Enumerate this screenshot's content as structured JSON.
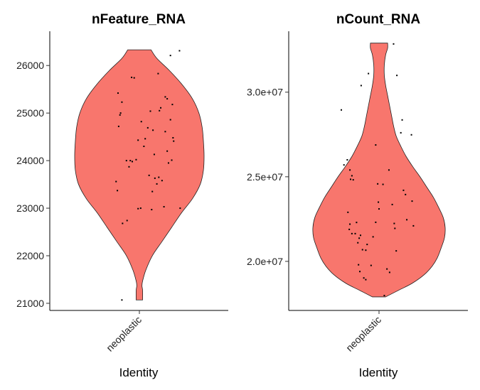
{
  "chart_data": [
    {
      "type": "violin",
      "title": "nFeature_RNA",
      "xlabel": "Identity",
      "ylabel": "",
      "categories": [
        "neoplastic"
      ],
      "fill_color": "#F8766D",
      "ylim": [
        20850,
        26720
      ],
      "yticks": [
        21000,
        22000,
        23000,
        24000,
        25000,
        26000
      ],
      "ytick_labels": [
        "21000",
        "22000",
        "23000",
        "24000",
        "25000",
        "26000"
      ],
      "violin": {
        "min": 21070,
        "max": 26330,
        "profile": [
          [
            21070,
            0.05
          ],
          [
            21270,
            0.05
          ],
          [
            21370,
            0.04
          ],
          [
            21470,
            0.05
          ],
          [
            21700,
            0.1
          ],
          [
            22000,
            0.2
          ],
          [
            22300,
            0.35
          ],
          [
            22600,
            0.5
          ],
          [
            22900,
            0.65
          ],
          [
            23200,
            0.82
          ],
          [
            23500,
            0.94
          ],
          [
            23800,
            0.99
          ],
          [
            24100,
            1.0
          ],
          [
            24400,
            0.99
          ],
          [
            24700,
            0.97
          ],
          [
            25000,
            0.92
          ],
          [
            25300,
            0.82
          ],
          [
            25600,
            0.66
          ],
          [
            25900,
            0.46
          ],
          [
            26150,
            0.27
          ],
          [
            26330,
            0.18
          ]
        ]
      },
      "points": [
        [
          -0.33,
          25420
        ],
        [
          -0.29,
          25000
        ],
        [
          -0.32,
          24720
        ],
        [
          -0.3,
          24960
        ],
        [
          -0.27,
          25230
        ],
        [
          -0.36,
          23560
        ],
        [
          -0.34,
          23370
        ],
        [
          -0.2,
          24000
        ],
        [
          -0.16,
          23870
        ],
        [
          -0.11,
          23980
        ],
        [
          -0.05,
          24020
        ],
        [
          -0.14,
          24000
        ],
        [
          -0.26,
          22680
        ],
        [
          -0.19,
          22740
        ],
        [
          -0.27,
          21070
        ],
        [
          -0.12,
          25750
        ],
        [
          -0.08,
          25740
        ],
        [
          -0.02,
          24430
        ],
        [
          0.03,
          24820
        ],
        [
          0.09,
          24460
        ],
        [
          0.07,
          24300
        ],
        [
          0.13,
          24690
        ],
        [
          0.15,
          23690
        ],
        [
          0.17,
          25040
        ],
        [
          0.21,
          24640
        ],
        [
          0.23,
          24130
        ],
        [
          0.29,
          25830
        ],
        [
          0.31,
          25050
        ],
        [
          0.33,
          25110
        ],
        [
          0.35,
          23580
        ],
        [
          0.24,
          23630
        ],
        [
          0.27,
          23510
        ],
        [
          0.2,
          23350
        ],
        [
          -0.02,
          22990
        ],
        [
          0.02,
          23000
        ],
        [
          0.19,
          22970
        ],
        [
          0.3,
          23650
        ],
        [
          0.4,
          25340
        ],
        [
          0.43,
          25300
        ],
        [
          0.48,
          24860
        ],
        [
          0.4,
          24610
        ],
        [
          0.43,
          24200
        ],
        [
          0.45,
          23950
        ],
        [
          0.38,
          23030
        ],
        [
          0.5,
          24010
        ],
        [
          0.51,
          25180
        ],
        [
          0.52,
          24480
        ],
        [
          0.53,
          24410
        ],
        [
          0.48,
          26210
        ],
        [
          0.62,
          26310
        ],
        [
          0.63,
          23000
        ]
      ]
    },
    {
      "type": "violin",
      "title": "nCount_RNA",
      "xlabel": "Identity",
      "ylabel": "",
      "categories": [
        "neoplastic"
      ],
      "fill_color": "#F8766D",
      "ylim": [
        17100000,
        33600000
      ],
      "yticks": [
        20000000,
        25000000,
        30000000
      ],
      "ytick_labels": [
        "2.0e+07",
        "2.5e+07",
        "3.0e+07"
      ],
      "violin": {
        "min": 17900000,
        "max": 32900000,
        "profile": [
          [
            17900000,
            0.1
          ],
          [
            18300000,
            0.3
          ],
          [
            18700000,
            0.5
          ],
          [
            19200000,
            0.68
          ],
          [
            19700000,
            0.8
          ],
          [
            20200000,
            0.88
          ],
          [
            20800000,
            0.94
          ],
          [
            21400000,
            0.99
          ],
          [
            22000000,
            1.0
          ],
          [
            22600000,
            0.97
          ],
          [
            23200000,
            0.9
          ],
          [
            23800000,
            0.82
          ],
          [
            24400000,
            0.72
          ],
          [
            25000000,
            0.62
          ],
          [
            25600000,
            0.51
          ],
          [
            26200000,
            0.41
          ],
          [
            26800000,
            0.33
          ],
          [
            27400000,
            0.26
          ],
          [
            28000000,
            0.22
          ],
          [
            28600000,
            0.19
          ],
          [
            29200000,
            0.16
          ],
          [
            29800000,
            0.13
          ],
          [
            30400000,
            0.1
          ],
          [
            31000000,
            0.08
          ],
          [
            31600000,
            0.08
          ],
          [
            32200000,
            0.1
          ],
          [
            32600000,
            0.13
          ],
          [
            32900000,
            0.13
          ]
        ]
      },
      "points": [
        [
          -0.57,
          28950000
        ],
        [
          -0.53,
          25700000
        ],
        [
          -0.48,
          26000000
        ],
        [
          -0.44,
          25400000
        ],
        [
          -0.41,
          25060000
        ],
        [
          -0.43,
          24850000
        ],
        [
          -0.39,
          24820000
        ],
        [
          -0.47,
          22900000
        ],
        [
          -0.44,
          22200000
        ],
        [
          -0.45,
          21890000
        ],
        [
          -0.41,
          21640000
        ],
        [
          -0.36,
          21640000
        ],
        [
          -0.32,
          21100000
        ],
        [
          -0.3,
          21370000
        ],
        [
          -0.25,
          20690000
        ],
        [
          -0.28,
          21540000
        ],
        [
          -0.34,
          22300000
        ],
        [
          -0.18,
          21000000
        ],
        [
          -0.09,
          21450000
        ],
        [
          -0.05,
          22310000
        ],
        [
          -0.01,
          23500000
        ],
        [
          0.0,
          23100000
        ],
        [
          -0.2,
          20660000
        ],
        [
          -0.31,
          19800000
        ],
        [
          -0.29,
          19400000
        ],
        [
          -0.23,
          19020000
        ],
        [
          -0.2,
          18920000
        ],
        [
          -0.12,
          19760000
        ],
        [
          -0.27,
          30390000
        ],
        [
          -0.16,
          31100000
        ],
        [
          -0.05,
          26880000
        ],
        [
          -0.02,
          24580000
        ],
        [
          0.06,
          24550000
        ],
        [
          0.15,
          25400000
        ],
        [
          0.2,
          23360000
        ],
        [
          0.23,
          22240000
        ],
        [
          0.24,
          21950000
        ],
        [
          0.26,
          20620000
        ],
        [
          0.12,
          19550000
        ],
        [
          0.16,
          19350000
        ],
        [
          0.08,
          17980000
        ],
        [
          0.22,
          32850000
        ],
        [
          0.27,
          30990000
        ],
        [
          0.33,
          27600000
        ],
        [
          0.37,
          24200000
        ],
        [
          0.4,
          23950000
        ],
        [
          0.35,
          28360000
        ],
        [
          0.49,
          27480000
        ],
        [
          0.42,
          22460000
        ],
        [
          0.52,
          22100000
        ],
        [
          0.5,
          23560000
        ]
      ]
    }
  ]
}
